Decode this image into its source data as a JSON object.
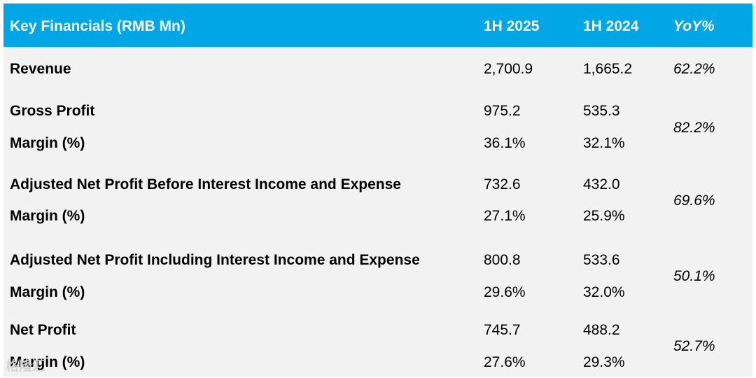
{
  "header": {
    "title": "Key Financials (RMB Mn)",
    "col1": "1H 2025",
    "col2": "1H 2024",
    "col3": "YoY%"
  },
  "rows": [
    {
      "label": "Revenue",
      "v2025": "2,700.9",
      "v2024": "1,665.2",
      "yoy": "62.2%"
    },
    {
      "label": "Gross Profit",
      "v2025": "975.2",
      "v2024": "535.3",
      "yoy": "82.2%",
      "margin_label": "Margin (%)",
      "m2025": "36.1%",
      "m2024": "32.1%"
    },
    {
      "label": "Adjusted Net Profit Before Interest Income and Expense",
      "v2025": "732.6",
      "v2024": "432.0",
      "yoy": "69.6%",
      "margin_label": "Margin (%)",
      "m2025": "27.1%",
      "m2024": "25.9%"
    },
    {
      "label": "Adjusted Net Profit Including Interest Income and Expense",
      "v2025": "800.8",
      "v2024": "533.6",
      "yoy": "50.1%",
      "margin_label": "Margin (%)",
      "m2025": "29.6%",
      "m2024": "32.0%"
    },
    {
      "label": "Net Profit",
      "v2025": "745.7",
      "v2024": "488.2",
      "yoy": "52.7%",
      "margin_label": "Margin (%)",
      "m2025": "27.6%",
      "m2024": "29.3%"
    }
  ],
  "colors": {
    "header_bg": "#00a6e6",
    "body_bg": "#f2f2f2"
  },
  "watermark": "格隆汇"
}
